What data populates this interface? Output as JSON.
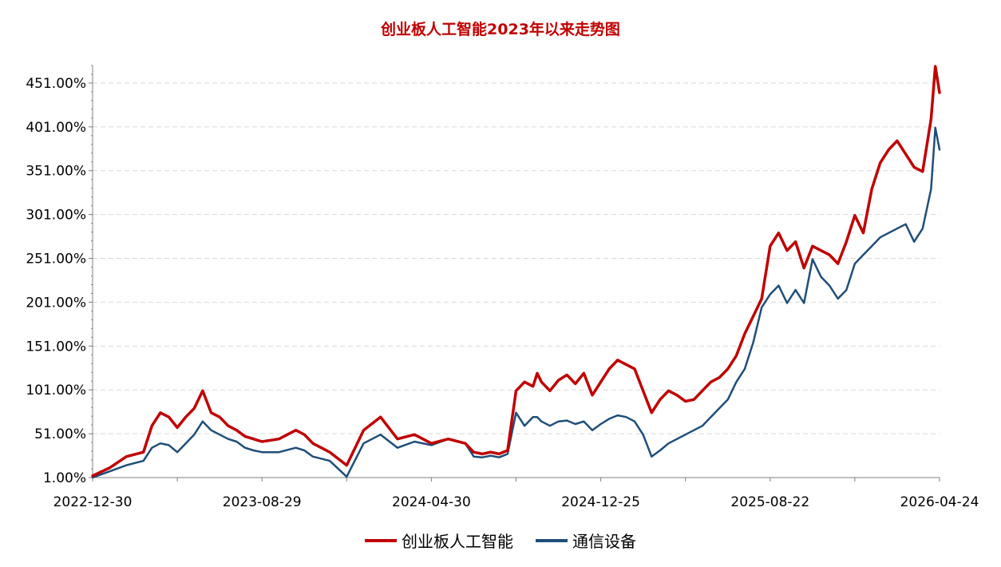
{
  "chart_data": {
    "type": "line",
    "title": "创业板人工智能2023年以来走势图",
    "xlabel": "",
    "ylabel": "",
    "ylim": [
      1.0,
      471.0
    ],
    "yticks": [
      "1.00%",
      "51.00%",
      "101.00%",
      "151.00%",
      "201.00%",
      "251.00%",
      "301.00%",
      "351.00%",
      "401.00%",
      "451.00%"
    ],
    "ytick_values": [
      1,
      51,
      101,
      151,
      201,
      251,
      301,
      351,
      401,
      451
    ],
    "xticks": [
      "2022-12-30",
      "2023-08-29",
      "2024-04-30",
      "2024-12-25",
      "2025-08-22",
      "2026-04-24"
    ],
    "x_range": [
      0,
      100
    ],
    "grid": true,
    "legend": "bottom",
    "series": [
      {
        "name": "创业板人工智能",
        "color": "#c00000",
        "x": [
          0,
          2,
          4,
          6,
          7,
          8,
          9,
          10,
          11,
          12,
          13,
          14,
          15,
          16,
          17,
          18,
          19,
          20,
          22,
          24,
          25,
          26,
          28,
          30,
          32,
          34,
          36,
          38,
          40,
          42,
          44,
          45,
          46,
          47,
          48,
          49,
          50,
          51,
          52,
          52.5,
          53,
          54,
          55,
          56,
          57,
          58,
          59,
          60,
          61,
          62,
          63,
          64,
          65,
          66,
          67,
          68,
          69,
          70,
          71,
          72,
          73,
          74,
          75,
          76,
          77,
          78,
          79,
          80,
          81,
          82,
          83,
          84,
          85,
          86,
          87,
          88,
          89,
          90,
          91,
          92,
          93,
          94,
          95,
          96,
          97,
          98,
          99,
          99.5,
          100
        ],
        "y": [
          3,
          12,
          25,
          30,
          60,
          75,
          70,
          58,
          70,
          80,
          100,
          75,
          70,
          60,
          55,
          48,
          45,
          42,
          45,
          55,
          50,
          40,
          30,
          15,
          55,
          70,
          45,
          50,
          40,
          45,
          40,
          30,
          28,
          30,
          28,
          32,
          100,
          110,
          105,
          120,
          110,
          100,
          112,
          118,
          108,
          120,
          95,
          110,
          125,
          135,
          130,
          125,
          100,
          75,
          90,
          100,
          95,
          88,
          90,
          100,
          110,
          115,
          125,
          140,
          165,
          185,
          205,
          265,
          280,
          260,
          270,
          240,
          265,
          260,
          255,
          245,
          270,
          300,
          280,
          330,
          360,
          375,
          385,
          370,
          355,
          350,
          410,
          470,
          440
        ]
      },
      {
        "name": "通信设备",
        "color": "#1f4e79",
        "x": [
          0,
          2,
          4,
          6,
          7,
          8,
          9,
          10,
          11,
          12,
          13,
          14,
          15,
          16,
          17,
          18,
          19,
          20,
          22,
          24,
          25,
          26,
          28,
          30,
          32,
          34,
          36,
          38,
          40,
          42,
          44,
          45,
          46,
          47,
          48,
          49,
          50,
          51,
          52,
          52.5,
          53,
          54,
          55,
          56,
          57,
          58,
          59,
          60,
          61,
          62,
          63,
          64,
          65,
          66,
          67,
          68,
          69,
          70,
          71,
          72,
          73,
          74,
          75,
          76,
          77,
          78,
          79,
          80,
          81,
          82,
          83,
          84,
          85,
          86,
          87,
          88,
          89,
          90,
          91,
          92,
          93,
          94,
          95,
          96,
          97,
          98,
          99,
          99.5,
          100
        ],
        "y": [
          1,
          8,
          15,
          20,
          35,
          40,
          38,
          30,
          40,
          50,
          65,
          55,
          50,
          45,
          42,
          35,
          32,
          30,
          30,
          35,
          32,
          25,
          20,
          2,
          40,
          50,
          35,
          42,
          38,
          45,
          40,
          25,
          24,
          26,
          24,
          28,
          75,
          60,
          70,
          70,
          65,
          60,
          65,
          66,
          62,
          65,
          55,
          62,
          68,
          72,
          70,
          65,
          50,
          25,
          32,
          40,
          45,
          50,
          55,
          60,
          70,
          80,
          90,
          110,
          125,
          155,
          195,
          210,
          220,
          200,
          215,
          200,
          250,
          230,
          220,
          205,
          215,
          245,
          255,
          265,
          275,
          280,
          285,
          290,
          270,
          285,
          330,
          400,
          375
        ]
      }
    ]
  }
}
